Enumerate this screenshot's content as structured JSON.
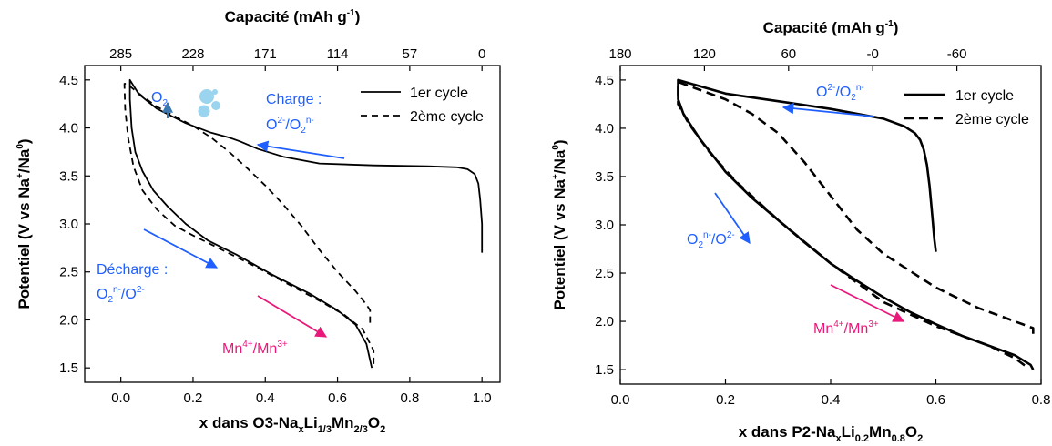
{
  "chart_data": [
    {
      "type": "line",
      "xlabel": "x dans O3-NaxLi1/3Mn2/3O2",
      "ylabel": "Potentiel (V vs Na+/Na0)",
      "top_xlabel": "Capacité (mAh g-1)",
      "xlim": [
        -0.1,
        1.05
      ],
      "ylim": [
        1.35,
        4.65
      ],
      "x_ticks": [
        0.0,
        0.2,
        0.4,
        0.6,
        0.8,
        1.0
      ],
      "x_tick_labels": [
        "0.0",
        "0.2",
        "0.4",
        "0.6",
        "0.8",
        "1.0"
      ],
      "y_ticks": [
        1.5,
        2.0,
        2.5,
        3.0,
        3.5,
        4.0,
        4.5
      ],
      "y_tick_labels": [
        "1.5",
        "2.0",
        "2.5",
        "3.0",
        "3.5",
        "4.0",
        "4.5"
      ],
      "top_ticks_x": [
        0.0,
        0.2,
        0.4,
        0.6,
        0.8,
        1.0
      ],
      "top_tick_labels": [
        "285",
        "228",
        "171",
        "114",
        "57",
        "0"
      ],
      "legend_position": "top-right",
      "series": [
        {
          "name": "1er cycle",
          "style": "solid",
          "x": [
            1.0,
            1.0,
            0.995,
            0.99,
            0.98,
            0.96,
            0.93,
            0.85,
            0.7,
            0.55,
            0.45,
            0.38,
            0.33,
            0.3,
            0.25,
            0.18,
            0.1,
            0.05,
            0.025,
            0.025,
            0.03,
            0.04,
            0.06,
            0.09,
            0.13,
            0.18,
            0.24,
            0.32,
            0.42,
            0.52,
            0.6,
            0.65,
            0.68,
            0.695
          ],
          "y": [
            2.7,
            3.0,
            3.25,
            3.42,
            3.52,
            3.57,
            3.59,
            3.6,
            3.61,
            3.63,
            3.7,
            3.78,
            3.86,
            3.9,
            3.95,
            4.05,
            4.2,
            4.35,
            4.5,
            4.3,
            4.0,
            3.75,
            3.55,
            3.35,
            3.18,
            3.0,
            2.83,
            2.68,
            2.47,
            2.28,
            2.1,
            1.95,
            1.75,
            1.5
          ]
        },
        {
          "name": "2ème cycle",
          "style": "dashed",
          "x": [
            0.69,
            0.69,
            0.68,
            0.65,
            0.6,
            0.55,
            0.5,
            0.45,
            0.4,
            0.35,
            0.3,
            0.25,
            0.2,
            0.15,
            0.1,
            0.06,
            0.03,
            0.02,
            0.01,
            0.012,
            0.02,
            0.035,
            0.06,
            0.1,
            0.15,
            0.2,
            0.27,
            0.36,
            0.45,
            0.55,
            0.62,
            0.67,
            0.7,
            0.7
          ],
          "y": [
            1.97,
            2.1,
            2.16,
            2.3,
            2.5,
            2.73,
            2.98,
            3.2,
            3.4,
            3.58,
            3.75,
            3.9,
            4.02,
            4.12,
            4.22,
            4.33,
            4.42,
            4.46,
            4.46,
            4.2,
            3.9,
            3.6,
            3.35,
            3.15,
            2.98,
            2.88,
            2.75,
            2.58,
            2.4,
            2.2,
            2.05,
            1.9,
            1.68,
            1.5
          ]
        }
      ],
      "annotations": [
        {
          "text": "O2",
          "color": "#1f5fff"
        },
        {
          "text": "Charge :",
          "color": "#1f5fff"
        },
        {
          "text": "O2-/O2n-",
          "color": "#1f5fff"
        },
        {
          "text": "Décharge :",
          "color": "#1f5fff"
        },
        {
          "text": "O2n-/O2-",
          "color": "#1f5fff"
        },
        {
          "text": "Mn4+/Mn3+",
          "color": "#e8197a"
        }
      ]
    },
    {
      "type": "line",
      "xlabel": "x dans P2-NaxLi0.2Mn0.8O2",
      "ylabel": "Potentiel (V vs Na+/Na0)",
      "top_xlabel": "Capacité (mAh g-1)",
      "xlim": [
        0.0,
        0.8
      ],
      "ylim": [
        1.35,
        4.65
      ],
      "x_ticks": [
        0.0,
        0.2,
        0.4,
        0.6,
        0.8
      ],
      "x_tick_labels": [
        "0.0",
        "0.2",
        "0.4",
        "0.6",
        "0.8"
      ],
      "y_ticks": [
        1.5,
        2.0,
        2.5,
        3.0,
        3.5,
        4.0,
        4.5
      ],
      "y_tick_labels": [
        "1.5",
        "2.0",
        "2.5",
        "3.0",
        "3.5",
        "4.0",
        "4.5"
      ],
      "top_ticks_x": [
        0.0,
        0.16,
        0.32,
        0.48,
        0.64
      ],
      "top_tick_labels": [
        "180",
        "120",
        "60",
        "-0",
        "-60"
      ],
      "legend_position": "top-right",
      "series": [
        {
          "name": "1er cycle",
          "style": "solid",
          "x": [
            0.6,
            0.597,
            0.593,
            0.588,
            0.583,
            0.577,
            0.57,
            0.56,
            0.54,
            0.5,
            0.4,
            0.3,
            0.2,
            0.11,
            0.11,
            0.12,
            0.15,
            0.2,
            0.25,
            0.3,
            0.35,
            0.4,
            0.45,
            0.5,
            0.55,
            0.6,
            0.65,
            0.7,
            0.75,
            0.78,
            0.785
          ],
          "y": [
            2.72,
            2.85,
            3.1,
            3.4,
            3.62,
            3.78,
            3.88,
            3.95,
            4.02,
            4.1,
            4.2,
            4.28,
            4.36,
            4.5,
            4.3,
            4.15,
            3.9,
            3.55,
            3.28,
            3.05,
            2.82,
            2.6,
            2.42,
            2.25,
            2.1,
            1.97,
            1.85,
            1.75,
            1.65,
            1.55,
            1.5
          ]
        },
        {
          "name": "2ème cycle",
          "style": "dashed",
          "x": [
            0.785,
            0.785,
            0.74,
            0.68,
            0.6,
            0.5,
            0.45,
            0.4,
            0.35,
            0.3,
            0.25,
            0.2,
            0.15,
            0.11,
            0.11,
            0.13,
            0.17,
            0.22,
            0.3,
            0.4,
            0.5,
            0.6,
            0.7,
            0.75,
            0.775
          ],
          "y": [
            1.87,
            1.93,
            2.02,
            2.14,
            2.35,
            2.7,
            2.95,
            3.3,
            3.65,
            3.95,
            4.15,
            4.3,
            4.4,
            4.48,
            4.25,
            4.05,
            3.75,
            3.45,
            3.05,
            2.6,
            2.2,
            1.95,
            1.75,
            1.62,
            1.52
          ]
        }
      ],
      "annotations": [
        {
          "text": "O2-/O2n-",
          "color": "#1f5fff"
        },
        {
          "text": "O2n-/O2-",
          "color": "#1f5fff"
        },
        {
          "text": "Mn4+/Mn3+",
          "color": "#e8197a"
        }
      ]
    }
  ]
}
